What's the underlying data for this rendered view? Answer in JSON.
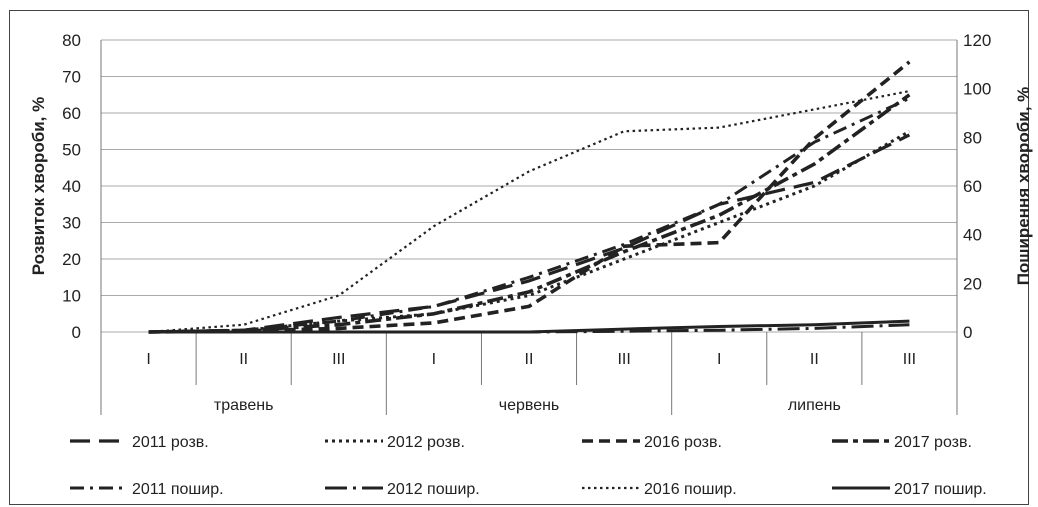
{
  "chart_data": {
    "type": "line",
    "categories": [
      "I",
      "II",
      "III",
      "I",
      "II",
      "III",
      "I",
      "II",
      "III"
    ],
    "groups": [
      {
        "label": "травень",
        "span": [
          0,
          2
        ]
      },
      {
        "label": "червень",
        "span": [
          3,
          5
        ]
      },
      {
        "label": "липень",
        "span": [
          6,
          8
        ]
      }
    ],
    "ylabel": "Розвиток хвороби, %",
    "y2label": "Поширення хвороби, %",
    "ylim": [
      0,
      80
    ],
    "y2lim": [
      0,
      120
    ],
    "yticks": [
      0,
      10,
      20,
      30,
      40,
      50,
      60,
      70,
      80
    ],
    "y2ticks": [
      0,
      20,
      40,
      60,
      80,
      100,
      120
    ],
    "legend_position": "bottom",
    "series": [
      {
        "name": "2011 розв.",
        "axis": "left",
        "dash": "long",
        "values": [
          0,
          0.5,
          4,
          7,
          14,
          23,
          35,
          41,
          54
        ]
      },
      {
        "name": "2012 розв.",
        "axis": "left",
        "dash": "dot",
        "values": [
          0,
          0.5,
          3,
          5,
          10,
          20,
          30,
          40,
          55
        ]
      },
      {
        "name": "2016 розв.",
        "axis": "left",
        "dash": "medium",
        "values": [
          0,
          0.3,
          1,
          2.5,
          7,
          23.5,
          24.5,
          53,
          74
        ]
      },
      {
        "name": "2017 розв.",
        "axis": "left",
        "dash": "dashdot-heavy",
        "values": [
          0,
          0.4,
          2,
          5,
          11,
          22,
          32,
          46,
          65
        ]
      },
      {
        "name": "2011 пошир.",
        "axis": "left",
        "dash": "dashdot",
        "values": [
          0,
          0.5,
          3,
          7,
          15,
          24,
          35,
          52,
          64
        ]
      },
      {
        "name": "2012 пошир.",
        "axis": "left",
        "dash": "longdot",
        "values": [
          0,
          0,
          0,
          0,
          0,
          0.2,
          0.5,
          1,
          2
        ]
      },
      {
        "name": "2016 пошир.",
        "axis": "left",
        "dash": "fine-dot",
        "values": [
          0,
          2,
          10,
          29,
          44,
          55,
          56,
          61,
          66
        ]
      },
      {
        "name": "2017 пошир.",
        "axis": "left",
        "dash": "solid",
        "values": [
          0,
          0,
          0,
          0,
          0,
          0.8,
          1.5,
          2,
          3
        ]
      }
    ]
  }
}
